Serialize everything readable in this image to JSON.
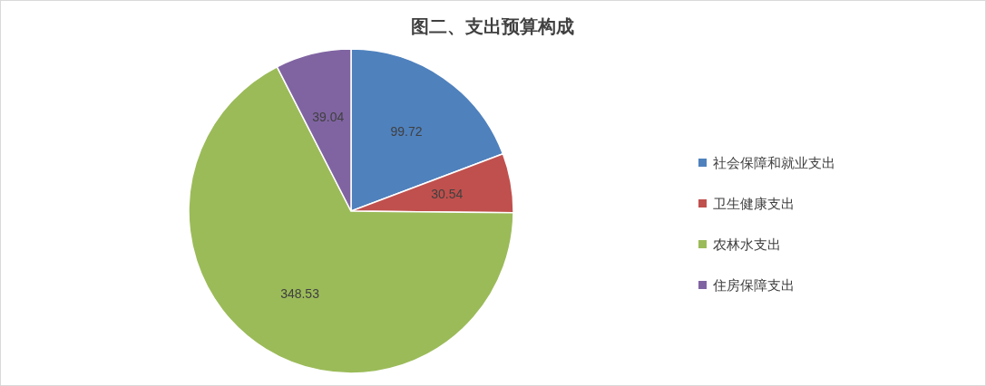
{
  "chart_data": {
    "type": "pie",
    "title": "图二、支出预算构成",
    "categories": [
      "社会保障和就业支出",
      "卫生健康支出",
      "农林水支出",
      "住房保障支出"
    ],
    "values": [
      99.72,
      30.54,
      348.53,
      39.04
    ],
    "colors": [
      "#4f81bd",
      "#c0504d",
      "#9bbb59",
      "#8064a2"
    ],
    "data_labels": true,
    "legend": "right"
  }
}
